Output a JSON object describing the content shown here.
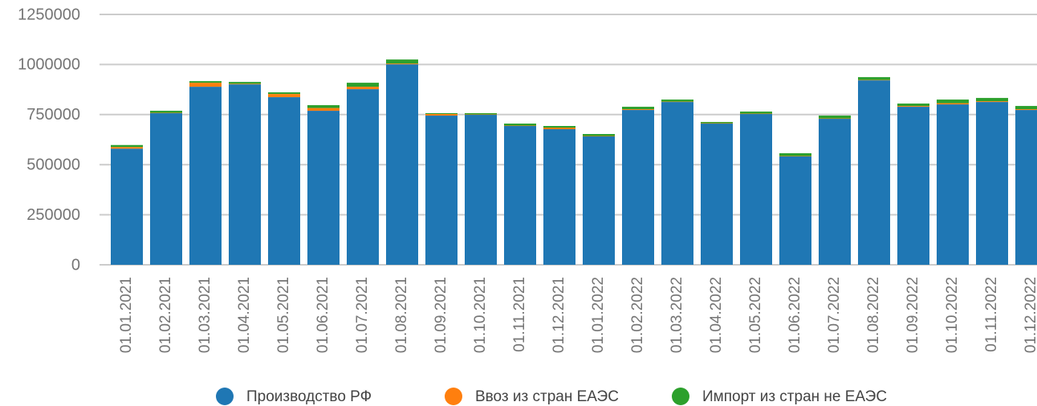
{
  "chart_data": {
    "type": "stacked_bar",
    "categories": [
      "01.01.2021",
      "01.02.2021",
      "01.03.2021",
      "01.04.2021",
      "01.05.2021",
      "01.06.2021",
      "01.07.2021",
      "01.08.2021",
      "01.09.2021",
      "01.10.2021",
      "01.11.2021",
      "01.12.2021",
      "01.01.2022",
      "01.02.2022",
      "01.03.2022",
      "01.04.2022",
      "01.05.2022",
      "01.06.2022",
      "01.07.2022",
      "01.08.2022",
      "01.09.2022",
      "01.10.2022",
      "01.11.2022",
      "01.12.2022"
    ],
    "series": [
      {
        "name": "Производство РФ",
        "color": "#1f77b4",
        "values": [
          580000,
          757000,
          889000,
          901000,
          837000,
          769000,
          877000,
          1001000,
          745000,
          749000,
          693000,
          677000,
          641000,
          773000,
          813000,
          705000,
          753000,
          541000,
          729000,
          921000,
          789000,
          801000,
          813000,
          773000
        ]
      },
      {
        "name": "Ввоз из стран ЕАЭС",
        "color": "#ff7f0e",
        "values": [
          8000,
          2000,
          20000,
          3000,
          16000,
          14000,
          12000,
          4000,
          8000,
          2000,
          2000,
          8000,
          2000,
          4000,
          2000,
          2000,
          2000,
          2000,
          2000,
          2000,
          4000,
          6000,
          4000,
          4000
        ]
      },
      {
        "name": "Импорт из стран не ЕАЭС",
        "color": "#2ca02c",
        "values": [
          10000,
          10000,
          8000,
          9000,
          8000,
          14000,
          20000,
          20000,
          4000,
          6000,
          10000,
          8000,
          10000,
          12000,
          10000,
          6000,
          10000,
          14000,
          14000,
          14000,
          12000,
          18000,
          16000,
          16000
        ]
      }
    ],
    "ylim": [
      0,
      1250000
    ],
    "yticks": [
      0,
      250000,
      500000,
      750000,
      1000000,
      1250000
    ],
    "grid": true,
    "legend": "bottom"
  }
}
